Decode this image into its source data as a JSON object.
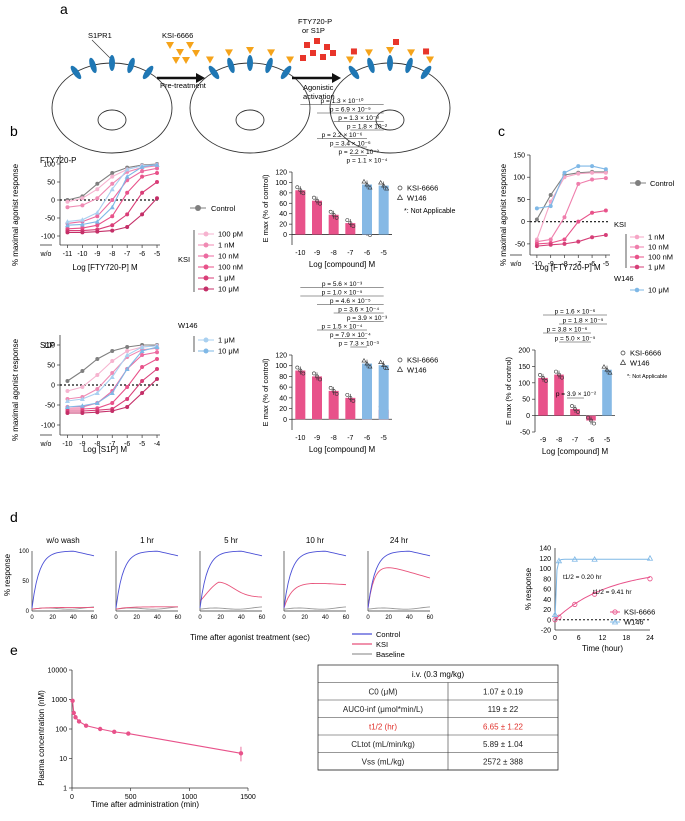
{
  "panel_labels": [
    "a",
    "b",
    "c",
    "d",
    "e"
  ],
  "colors": {
    "control": "#7f7f7f",
    "ksi": "#e8528a",
    "ksi_light": "#f3a6c4",
    "w146": "#7fb8e6",
    "w146_bar": "#86b9e5",
    "blue_trace": "#4a4fd6",
    "red_trace": "#e8527a",
    "baseline": "#9a9a9a",
    "receptor": "#1f77b4",
    "antagonist": "#f5a31a",
    "agonist": "#e8352a",
    "red_text": "#e0302a"
  },
  "schematic": {
    "receptor_label": "S1PR1",
    "antagonist_label": "KSI-6666",
    "step1": "Pre-treatment",
    "agonist_label_1": "FTY720-P",
    "agonist_label_2": "or S1P",
    "step2_1": "Agonistic",
    "step2_2": "activation"
  },
  "panel_b": {
    "ylabel": "% maximal agonist response",
    "fty_title": "FTY720-P",
    "fty_xlabel": "Log [FTY720-P] M",
    "s1p_title": "S1P",
    "s1p_xlabel": "Log [S1P] M",
    "wo": "w/o",
    "control_label": "Control",
    "ksi_label": "KSI",
    "ksi_doses": [
      "100 pM",
      "1 nM",
      "10 nM",
      "100 nM",
      "1 μM",
      "10 μM"
    ],
    "w146_label": "W146",
    "w146_doses": [
      "1 μM",
      "10 μM"
    ],
    "emax_ylabel": "E max (% of control)",
    "emax_xlabel": "Log [compound] M",
    "legend_ksi": "KSI-6666",
    "legend_w146": "W146",
    "na_note": "*: Not Applicable",
    "fty_pvals": [
      "p = 1.3 × 10⁻¹⁰",
      "p = 6.9 × 10⁻⁹",
      "p = 1.3 × 10⁻⁸",
      "p = 1.8 × 10⁻²",
      "p = 2.2 × 10⁻⁶",
      "p = 3.4 × 10⁻⁶",
      "p = 2.2 × 10⁻³",
      "p = 1.1 × 10⁻⁴"
    ],
    "s1p_pvals": [
      "p = 5.6 × 10⁻³",
      "p = 1.0 × 10⁻⁵",
      "p = 4.6 × 10⁻⁵",
      "p = 3.6 × 10⁻⁴",
      "p = 3.9 × 10⁻³",
      "p = 1.5 × 10⁻⁴",
      "p = 7.9 × 10⁻⁴",
      "p = 7.3 × 10⁻³"
    ]
  },
  "panel_c": {
    "ylabel": "% maximal agonist response",
    "xlabel": "Log [FTY720-P] M",
    "control_label": "Control",
    "ksi_label": "KSI",
    "ksi_doses": [
      "1 nM",
      "10 nM",
      "100 nM",
      "1 μM"
    ],
    "w146_label": "W146",
    "w146_doses": [
      "10 μM"
    ],
    "emax_ylabel": "E max (% of control)",
    "emax_xlabel": "Log [compound] M",
    "legend_ksi": "KSI-6666",
    "legend_w146": "W146",
    "na_note": "*: Not Applicable",
    "pvals": [
      "p = 1.6 × 10⁻⁶",
      "p = 1.8 × 10⁻⁵",
      "p = 3.8 × 10⁻⁶",
      "p = 5.0 × 10⁻⁵",
      "p = 3.9 × 10⁻²"
    ]
  },
  "panel_d": {
    "ylabel": "% response",
    "xlabel": "Time after agonist treatment (sec)",
    "titles": [
      "w/o wash",
      "1 hr",
      "5 hr",
      "10 hr",
      "24 hr"
    ],
    "legend": [
      "Control",
      "KSI",
      "Baseline"
    ],
    "right_ylabel": "% response",
    "right_xlabel": "Time (hour)",
    "half_life_ksi": "t1/2 = 9.41 hr",
    "half_life_w146": "t1/2 = 0.20 hr",
    "legend_ksi": "KSI-6666",
    "legend_w146": "W146"
  },
  "panel_e": {
    "ylabel": "Plasma concentration (nM)",
    "xlabel": "Time after administration (min)",
    "table_header": "i.v. (0.3 mg/kg)",
    "table_rows": [
      {
        "param": "C0 (μM)",
        "value": "1.07 ± 0.19"
      },
      {
        "param": "AUC0-inf (μmol*min/L)",
        "value": "119 ± 22"
      },
      {
        "param": "t1/2 (hr)",
        "value": "6.65 ± 1.22"
      },
      {
        "param": "CLtot (mL/min/kg)",
        "value": "5.89 ± 1.04"
      },
      {
        "param": "Vss (mL/kg)",
        "value": "2572 ± 388"
      }
    ]
  },
  "chart_data": [
    {
      "type": "line",
      "title": "FTY720-P",
      "xlabel": "Log [FTY720-P] M",
      "ylabel": "% maximal agonist response",
      "x": [
        -11,
        -10,
        -9,
        -8,
        -7,
        -6,
        -5
      ],
      "ylim": [
        -125,
        125
      ],
      "series": [
        {
          "name": "Control",
          "values": [
            0,
            10,
            45,
            75,
            90,
            97,
            100
          ]
        },
        {
          "name": "KSI 100 pM",
          "values": [
            -5,
            5,
            30,
            65,
            85,
            95,
            98
          ]
        },
        {
          "name": "KSI 1 nM",
          "values": [
            -20,
            -15,
            5,
            45,
            78,
            90,
            95
          ]
        },
        {
          "name": "KSI 10 nM",
          "values": [
            -65,
            -60,
            -45,
            0,
            55,
            80,
            88
          ]
        },
        {
          "name": "KSI 100 nM",
          "values": [
            -80,
            -78,
            -70,
            -45,
            20,
            65,
            75
          ]
        },
        {
          "name": "KSI 1 μM",
          "values": [
            -85,
            -85,
            -82,
            -70,
            -40,
            20,
            50
          ]
        },
        {
          "name": "KSI 10 μM",
          "values": [
            -90,
            -90,
            -88,
            -85,
            -75,
            -40,
            5
          ]
        },
        {
          "name": "W146 1 μM",
          "values": [
            -60,
            -55,
            -35,
            30,
            85,
            95,
            98
          ]
        },
        {
          "name": "W146 10 μM",
          "values": [
            -70,
            -68,
            -60,
            -20,
            65,
            92,
            98
          ]
        }
      ]
    },
    {
      "type": "bar",
      "title": "Emax FTY720-P",
      "xlabel": "Log [compound] M",
      "ylabel": "E max (% of control)",
      "categories": [
        "-10",
        "-9",
        "-8",
        "-7",
        "-6",
        "-5"
      ],
      "ylim": [
        -20,
        120
      ],
      "series": [
        {
          "name": "KSI-6666",
          "values": [
            85,
            65,
            38,
            22,
            5,
            null
          ]
        },
        {
          "name": "W146",
          "values": [
            null,
            null,
            null,
            null,
            96,
            94
          ]
        }
      ]
    },
    {
      "type": "line",
      "title": "S1P",
      "xlabel": "Log [S1P] M",
      "ylabel": "% maximal agonist response",
      "x": [
        -10,
        -9,
        -8,
        -7,
        -6,
        -5,
        -4
      ],
      "ylim": [
        -125,
        125
      ],
      "series": [
        {
          "name": "Control",
          "values": [
            10,
            35,
            65,
            85,
            95,
            100,
            100
          ]
        },
        {
          "name": "KSI 100 pM",
          "values": [
            -15,
            -5,
            25,
            60,
            85,
            95,
            98
          ]
        },
        {
          "name": "KSI 1 nM",
          "values": [
            -35,
            -30,
            -10,
            30,
            70,
            88,
            92
          ]
        },
        {
          "name": "KSI 10 nM",
          "values": [
            -55,
            -55,
            -45,
            -15,
            40,
            75,
            82
          ]
        },
        {
          "name": "KSI 100 nM",
          "values": [
            -60,
            -60,
            -58,
            -45,
            -5,
            45,
            65
          ]
        },
        {
          "name": "KSI 1 μM",
          "values": [
            -65,
            -65,
            -63,
            -60,
            -35,
            10,
            40
          ]
        },
        {
          "name": "KSI 10 μM",
          "values": [
            -70,
            -70,
            -68,
            -65,
            -55,
            -20,
            15
          ]
        },
        {
          "name": "W146 1 μM",
          "values": [
            -40,
            -35,
            -20,
            20,
            75,
            95,
            98
          ]
        },
        {
          "name": "W146 10 μM",
          "values": [
            -55,
            -52,
            -45,
            -20,
            40,
            85,
            95
          ]
        }
      ]
    },
    {
      "type": "bar",
      "title": "Emax S1P",
      "xlabel": "Log [compound] M",
      "ylabel": "E max (% of control)",
      "categories": [
        "-10",
        "-9",
        "-8",
        "-7",
        "-6",
        "-5"
      ],
      "ylim": [
        -20,
        120
      ],
      "series": [
        {
          "name": "KSI-6666",
          "values": [
            91,
            80,
            53,
            40,
            28,
            18
          ]
        },
        {
          "name": "W146",
          "values": [
            null,
            null,
            null,
            null,
            104,
            101
          ]
        }
      ]
    },
    {
      "type": "line",
      "title": "Panel c FTY720-P",
      "xlabel": "Log [FTY720-P] M",
      "ylabel": "% maximal agonist response",
      "x": [
        -10,
        -9,
        -8,
        -7,
        -6,
        -5
      ],
      "ylim": [
        -75,
        150
      ],
      "series": [
        {
          "name": "Control",
          "values": [
            5,
            60,
            105,
            110,
            112,
            112
          ]
        },
        {
          "name": "KSI 1 nM",
          "values": [
            -40,
            45,
            100,
            108,
            110,
            110
          ]
        },
        {
          "name": "KSI 10 nM",
          "values": [
            -45,
            -40,
            10,
            85,
            95,
            98
          ]
        },
        {
          "name": "KSI 100 nM",
          "values": [
            -50,
            -48,
            -40,
            0,
            20,
            25
          ]
        },
        {
          "name": "KSI 1 μM",
          "values": [
            -55,
            -52,
            -50,
            -45,
            -35,
            -30
          ]
        },
        {
          "name": "W146 10 μM",
          "values": [
            30,
            35,
            110,
            125,
            125,
            118
          ]
        }
      ]
    },
    {
      "type": "bar",
      "title": "Emax panel c",
      "xlabel": "Log [compound] M",
      "ylabel": "E max (% of control)",
      "categories": [
        "-9",
        "-8",
        "-7",
        "-6",
        "-5"
      ],
      "ylim": [
        -50,
        200
      ],
      "series": [
        {
          "name": "KSI-6666",
          "values": [
            115,
            125,
            20,
            -15,
            null
          ]
        },
        {
          "name": "W146",
          "values": [
            null,
            null,
            null,
            null,
            140
          ]
        }
      ]
    },
    {
      "type": "line",
      "title": "Wash-out time course",
      "xlabel": "Time after agonist treatment (sec)",
      "ylabel": "% response",
      "x": [
        0,
        10,
        20,
        30,
        40,
        50,
        60
      ],
      "ylim": [
        0,
        100
      ],
      "series": [
        {
          "name": "Control w/o wash",
          "values": [
            5,
            60,
            90,
            98,
            100,
            99,
            92
          ]
        },
        {
          "name": "KSI w/o wash",
          "values": [
            2,
            4,
            5,
            5,
            6,
            6,
            6
          ]
        },
        {
          "name": "Control 24 hr",
          "values": [
            5,
            60,
            90,
            98,
            100,
            99,
            92
          ]
        },
        {
          "name": "KSI 24 hr",
          "values": [
            3,
            50,
            80,
            82,
            75,
            65,
            55
          ]
        }
      ]
    },
    {
      "type": "scatter",
      "title": "Recovery over time",
      "xlabel": "Time (hour)",
      "ylabel": "% response",
      "x": [
        0,
        1,
        5,
        10,
        24
      ],
      "ylim": [
        -20,
        140
      ],
      "series": [
        {
          "name": "KSI-6666",
          "values": [
            0,
            5,
            30,
            50,
            80
          ]
        },
        {
          "name": "W146",
          "values": [
            10,
            115,
            118,
            118,
            120
          ]
        }
      ]
    },
    {
      "type": "line",
      "title": "Plasma concentration",
      "xlabel": "Time after administration (min)",
      "ylabel": "Plasma concentration (nM)",
      "x": [
        5,
        15,
        30,
        60,
        120,
        240,
        360,
        480,
        1440
      ],
      "values": [
        900,
        350,
        250,
        180,
        130,
        100,
        80,
        70,
        15
      ],
      "ylim": [
        1,
        10000
      ]
    }
  ]
}
